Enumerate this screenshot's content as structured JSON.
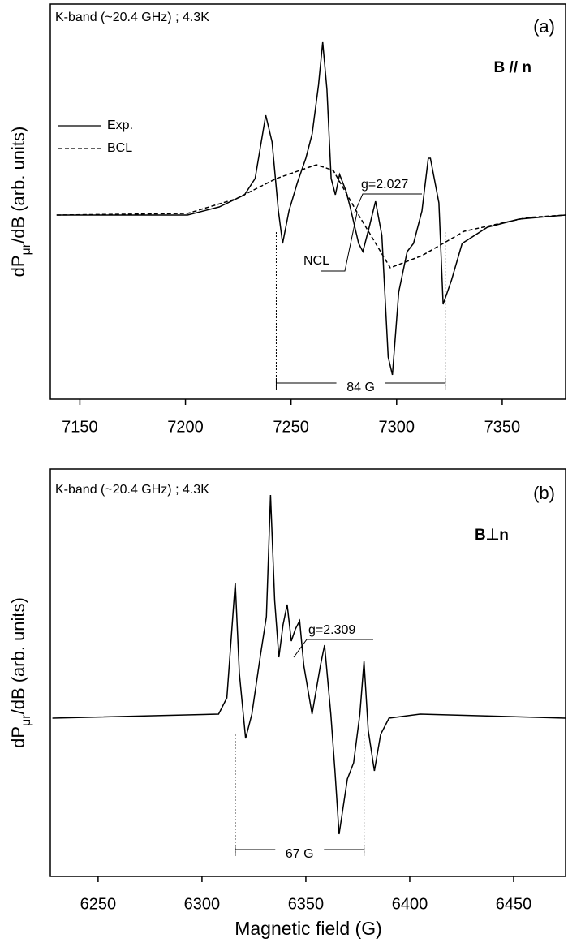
{
  "chart_data": [
    {
      "type": "line",
      "title": "K-band (~20.4 GHz) ; 4.3K",
      "panel_label": "(a)",
      "orientation": "B // n",
      "ylabel": [
        "dP",
        "μr",
        "/dB (arb. units)"
      ],
      "xlim": [
        7136,
        7380
      ],
      "xticks": [
        7150,
        7200,
        7250,
        7300,
        7350
      ],
      "ylim": [
        -2.27,
        2.6
      ],
      "series": [
        {
          "name": "Exp.",
          "color": "#000000",
          "style": "solid",
          "x": [
            7139,
            7201,
            7216,
            7228,
            7233,
            7238,
            7241,
            7244,
            7246,
            7249,
            7253,
            7257,
            7260,
            7263,
            7265,
            7267,
            7269,
            7271,
            7273,
            7276,
            7278,
            7282,
            7284,
            7287,
            7290,
            7293,
            7296,
            7298,
            7301,
            7305,
            7308,
            7312,
            7315,
            7316,
            7320,
            7322,
            7326,
            7331,
            7343,
            7358,
            7380
          ],
          "values": [
            0,
            0,
            0.1,
            0.25,
            0.45,
            1.23,
            0.9,
            0.05,
            -0.35,
            0.05,
            0.4,
            0.7,
            1.0,
            1.6,
            2.13,
            1.55,
            0.45,
            0.25,
            0.5,
            0.3,
            0.1,
            -0.35,
            -0.45,
            -0.15,
            0.17,
            -0.25,
            -1.75,
            -1.97,
            -0.95,
            -0.45,
            -0.35,
            0.05,
            0.7,
            0.7,
            0.15,
            -1.1,
            -0.8,
            -0.35,
            -0.15,
            -0.05,
            0
          ]
        },
        {
          "name": "BCL",
          "color": "#000000",
          "style": "dashed",
          "x": [
            7139,
            7201,
            7224,
            7243,
            7262,
            7270,
            7282,
            7297,
            7312,
            7332,
            7362,
            7380
          ],
          "values": [
            0,
            0.02,
            0.2,
            0.45,
            0.62,
            0.55,
            0,
            -0.65,
            -0.5,
            -0.2,
            -0.03,
            0
          ]
        }
      ],
      "g_label": "g=2.027",
      "ncl_label": "NCL",
      "bracket": {
        "x": [
          7243,
          7323
        ],
        "label": "84 G"
      }
    },
    {
      "type": "line",
      "title": "K-band (~20.4 GHz) ; 4.3K",
      "panel_label": "(b)",
      "orientation": "B⊥n",
      "ylabel": [
        "dP",
        "μr",
        "/dB (arb. units)"
      ],
      "xlabel": "Magnetic field (G)",
      "xlim": [
        6227,
        6475
      ],
      "xticks": [
        6250,
        6300,
        6350,
        6400,
        6450
      ],
      "ylim": [
        -1.95,
        3.07
      ],
      "series": [
        {
          "color": "#000000",
          "style": "solid",
          "x": [
            6228,
            6308,
            6312,
            6316,
            6318,
            6321,
            6324,
            6328,
            6331,
            6333,
            6335,
            6337,
            6339,
            6341,
            6343,
            6345,
            6347,
            6349,
            6353,
            6357,
            6359,
            6362,
            6364,
            6366,
            6370,
            6373,
            6376,
            6378,
            6380,
            6383,
            6386,
            6390,
            6405,
            6475
          ],
          "values": [
            0,
            0.05,
            0.25,
            1.67,
            0.55,
            -0.25,
            0.05,
            0.75,
            1.25,
            2.75,
            1.45,
            0.75,
            1.15,
            1.4,
            0.95,
            1.1,
            1.2,
            0.65,
            0.05,
            0.65,
            0.9,
            0.05,
            -0.65,
            -1.43,
            -0.75,
            -0.55,
            0.05,
            0.7,
            -0.15,
            -0.65,
            -0.2,
            0,
            0.05,
            0
          ]
        }
      ],
      "g_label": "g=2.309",
      "bracket": {
        "x": [
          6316,
          6378
        ],
        "label": "67 G"
      }
    }
  ]
}
